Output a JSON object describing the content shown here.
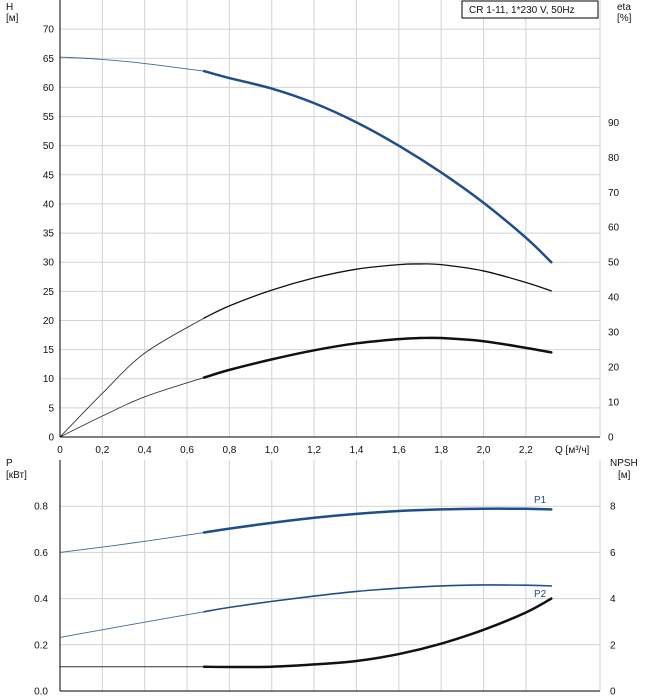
{
  "colors": {
    "background": "#ffffff",
    "grid": "#d2d2d2",
    "blue": "#1f4e8c",
    "black": "#111111"
  },
  "chart_data": [
    {
      "type": "line",
      "title": "CR 1-11, 1*230 V, 50Hz",
      "xlabel": "Q [м³/ч]",
      "ylabel_line1": "H",
      "ylabel_line2": "[м]",
      "y2label_line1": "eta",
      "y2label_line2": "[%]",
      "xlim": [
        0,
        2.55
      ],
      "ylim": [
        0,
        75
      ],
      "y2lim": [
        0,
        125
      ],
      "x_ticks": [
        "0",
        "0,2",
        "0,4",
        "0,6",
        "0,8",
        "1,0",
        "1,2",
        "1,4",
        "1,6",
        "1,8",
        "2,0",
        "2,2"
      ],
      "x_tick_values": [
        0,
        0.2,
        0.4,
        0.6,
        0.8,
        1.0,
        1.2,
        1.4,
        1.6,
        1.8,
        2.0,
        2.2
      ],
      "y_ticks": [
        "0",
        "5",
        "10",
        "15",
        "20",
        "25",
        "30",
        "35",
        "40",
        "45",
        "50",
        "55",
        "60",
        "65",
        "70"
      ],
      "y2_ticks": [
        "0",
        "10",
        "20",
        "30",
        "40",
        "50",
        "60",
        "70",
        "80",
        "90"
      ],
      "grid": true,
      "series": [
        {
          "key": "H",
          "axis": "left",
          "color": "#1f4e8c",
          "width": 2.5,
          "x": [
            0,
            0.2,
            0.4,
            0.68,
            0.8,
            1.0,
            1.2,
            1.4,
            1.6,
            1.8,
            2.0,
            2.2,
            2.32
          ],
          "y": [
            65.2,
            64.8,
            64.1,
            62.8,
            61.6,
            59.8,
            57.3,
            54.0,
            50.0,
            45.4,
            40.2,
            34.2,
            30.0
          ]
        },
        {
          "key": "eta_pump",
          "axis": "right",
          "color": "#111111",
          "width": 1.3,
          "x": [
            0,
            0.2,
            0.4,
            0.68,
            0.8,
            1.0,
            1.2,
            1.4,
            1.6,
            1.7,
            1.8,
            2.0,
            2.2,
            2.32
          ],
          "y": [
            0,
            12.5,
            24,
            34,
            37.5,
            42,
            45.5,
            48,
            49.3,
            49.5,
            49.3,
            47.5,
            44.2,
            41.8
          ]
        },
        {
          "key": "eta_total",
          "axis": "right",
          "color": "#111111",
          "width": 2.5,
          "x": [
            0,
            0.2,
            0.4,
            0.68,
            0.8,
            1.0,
            1.2,
            1.4,
            1.6,
            1.7,
            1.8,
            2.0,
            2.2,
            2.32
          ],
          "y": [
            0,
            6.0,
            11.5,
            17.0,
            19.2,
            22.2,
            24.8,
            26.8,
            28.0,
            28.3,
            28.3,
            27.4,
            25.5,
            24.2
          ]
        }
      ]
    },
    {
      "type": "line",
      "xlim": [
        0,
        2.55
      ],
      "ylim": [
        0,
        1.0
      ],
      "y2lim": [
        0,
        10
      ],
      "ylabel_line1": "P",
      "ylabel_line2": "[кВт]",
      "y2label_line1": "NPSH",
      "y2label_line2": "[м]",
      "y_ticks": [
        "0.0",
        "0.2",
        "0.4",
        "0.6",
        "0.8"
      ],
      "y_tick_values": [
        0,
        0.2,
        0.4,
        0.6,
        0.8
      ],
      "y2_ticks": [
        "0",
        "2",
        "4",
        "6",
        "8"
      ],
      "y2_tick_values": [
        0,
        2,
        4,
        6,
        8
      ],
      "grid": true,
      "series": [
        {
          "name": "P1",
          "axis": "left",
          "color": "#1f4e8c",
          "width": 2.5,
          "x": [
            0,
            0.2,
            0.4,
            0.68,
            0.8,
            1.0,
            1.2,
            1.4,
            1.6,
            1.8,
            2.0,
            2.2,
            2.32
          ],
          "y": [
            0.6,
            0.623,
            0.648,
            0.686,
            0.703,
            0.728,
            0.75,
            0.767,
            0.779,
            0.786,
            0.789,
            0.789,
            0.786
          ]
        },
        {
          "name": "P2",
          "axis": "left",
          "color": "#1f4e8c",
          "width": 1.6,
          "x": [
            0,
            0.2,
            0.4,
            0.68,
            0.8,
            1.0,
            1.2,
            1.4,
            1.6,
            1.8,
            2.0,
            2.2,
            2.32
          ],
          "y": [
            0.232,
            0.265,
            0.298,
            0.343,
            0.362,
            0.388,
            0.411,
            0.431,
            0.445,
            0.455,
            0.459,
            0.458,
            0.455
          ]
        },
        {
          "key": "NPSH",
          "axis": "right",
          "color": "#111111",
          "width": 2.5,
          "x": [
            0,
            0.4,
            0.68,
            0.8,
            1.0,
            1.2,
            1.4,
            1.6,
            1.8,
            2.0,
            2.2,
            2.32
          ],
          "y": [
            1.05,
            1.05,
            1.05,
            1.04,
            1.05,
            1.15,
            1.3,
            1.6,
            2.05,
            2.65,
            3.4,
            4.0
          ]
        }
      ]
    }
  ]
}
